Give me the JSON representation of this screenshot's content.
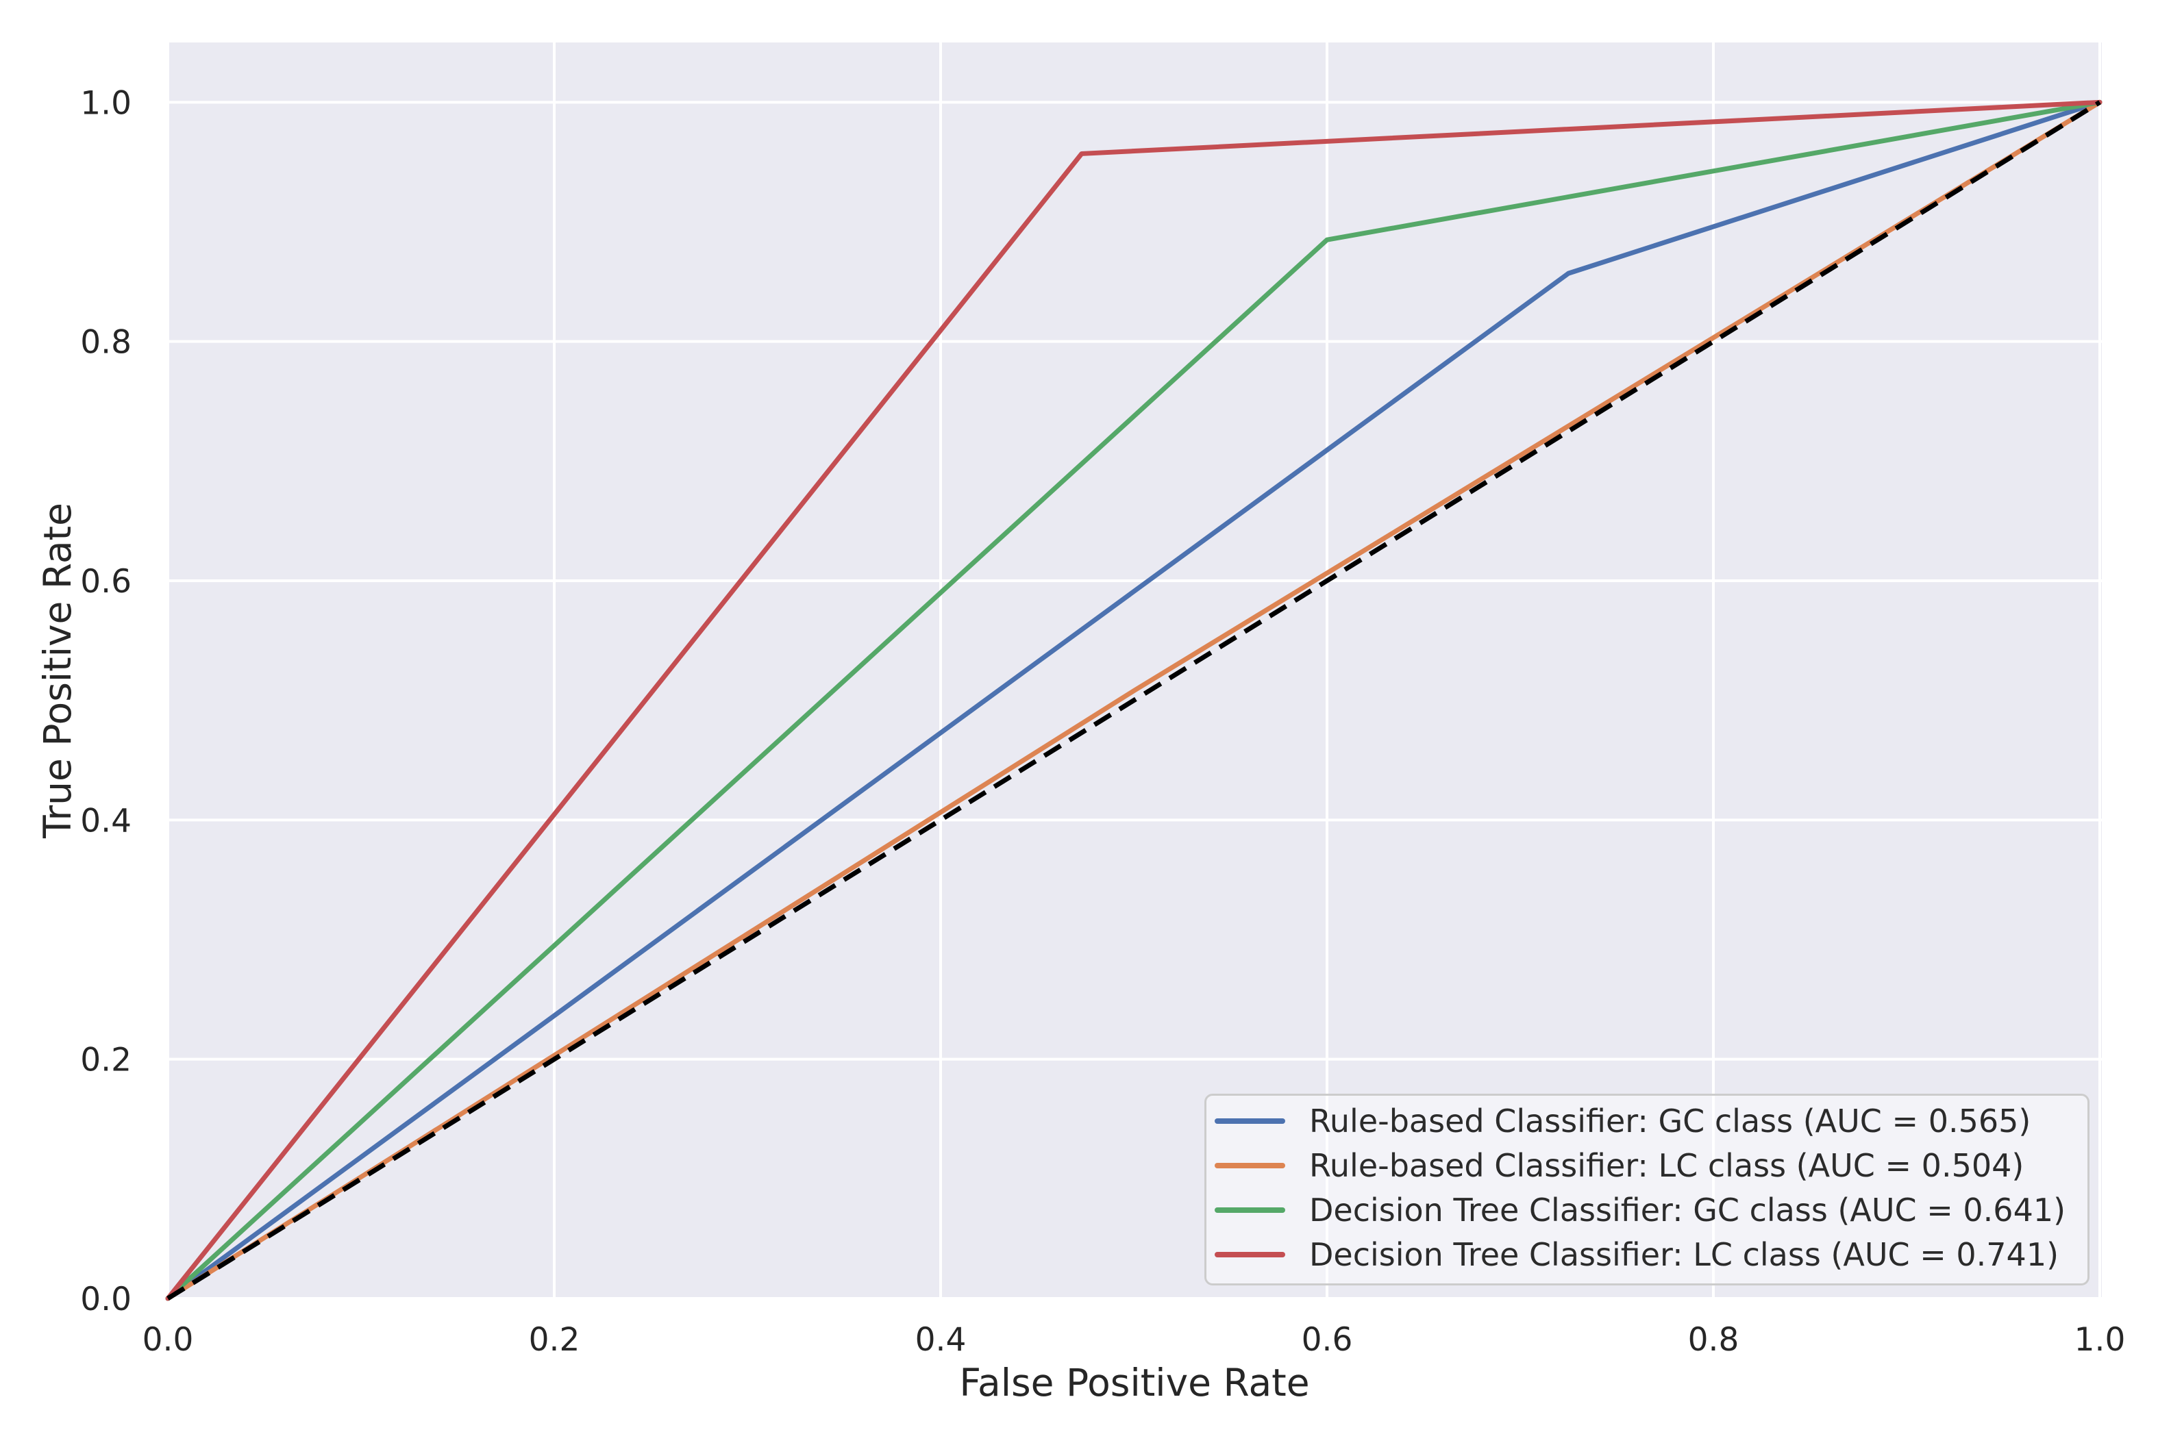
{
  "chart_data": {
    "type": "line",
    "title": "",
    "xlabel": "False Positive Rate",
    "ylabel": "True Positive Rate",
    "xlim": [
      0.0,
      1.0
    ],
    "ylim": [
      0.0,
      1.05
    ],
    "x_ticks": [
      0.0,
      0.2,
      0.4,
      0.6,
      0.8,
      1.0
    ],
    "y_ticks": [
      0.0,
      0.2,
      0.4,
      0.6,
      0.8,
      1.0
    ],
    "tick_decimals": 1,
    "grid": true,
    "background_color": "#eaeaf2",
    "grid_color": "#ffffff",
    "text_color": "#262626",
    "legend_position": "lower right",
    "series": [
      {
        "name": "Rule-based Classifier: GC class (AUC = 0.565)",
        "auc": 0.565,
        "color": "#4c72b0",
        "style": "solid",
        "points": [
          [
            0.0,
            0.0
          ],
          [
            0.725,
            0.857
          ],
          [
            1.0,
            1.0
          ]
        ]
      },
      {
        "name": "Rule-based Classifier: LC class (AUC = 0.504)",
        "auc": 0.504,
        "color": "#dd8452",
        "style": "solid",
        "points": [
          [
            0.0,
            0.0
          ],
          [
            0.5,
            0.508
          ],
          [
            1.0,
            1.0
          ]
        ]
      },
      {
        "name": "Decision Tree Classifier: GC class (AUC = 0.641)",
        "auc": 0.641,
        "color": "#55a868",
        "style": "solid",
        "points": [
          [
            0.0,
            0.0
          ],
          [
            0.6,
            0.885
          ],
          [
            1.0,
            1.0
          ]
        ]
      },
      {
        "name": "Decision Tree Classifier: LC class (AUC = 0.741)",
        "auc": 0.741,
        "color": "#c44e52",
        "style": "solid",
        "points": [
          [
            0.0,
            0.0
          ],
          [
            0.473,
            0.957
          ],
          [
            1.0,
            1.0
          ]
        ]
      }
    ],
    "reference_line": {
      "name": "chance-diagonal",
      "color": "#000000",
      "style": "dashed",
      "points": [
        [
          0.0,
          0.0
        ],
        [
          1.0,
          1.0
        ]
      ]
    }
  }
}
